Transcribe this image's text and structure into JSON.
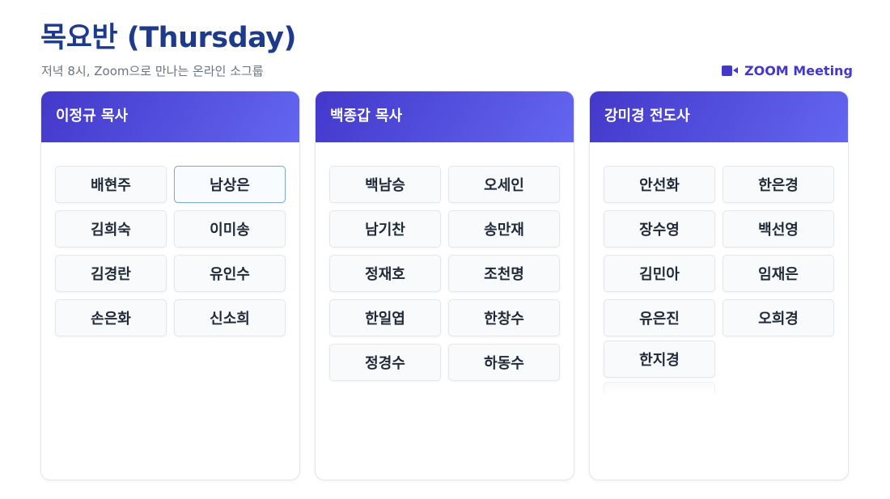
{
  "header": {
    "title": "목요반 (Thursday)",
    "subtitle": "저녁 8시, Zoom으로 만나는 온라인 소그룹",
    "zoom_link": "ZOOM Meeting",
    "zoom_icon": "video-camera-icon"
  },
  "colors": {
    "title": "#1e3a8a",
    "accent": "#4338ca",
    "header_gradient_end": "#6366f1"
  },
  "groups": [
    {
      "leader": "이정규 목사",
      "members": [
        "배현주",
        "남상은",
        "김희숙",
        "이미송",
        "김경란",
        "유인수",
        "손은화",
        "신소희"
      ],
      "selected": "남상은"
    },
    {
      "leader": "백종갑 목사",
      "members": [
        "백남승",
        "오세인",
        "남기찬",
        "송만재",
        "정재호",
        "조천명",
        "한일엽",
        "한창수",
        "정경수",
        "하동수"
      ]
    },
    {
      "leader": "강미경 전도사",
      "members": [
        "안선화",
        "한은경",
        "장수영",
        "백선영",
        "김민아",
        "임재은",
        "유은진",
        "오희경",
        "한지경"
      ]
    }
  ]
}
